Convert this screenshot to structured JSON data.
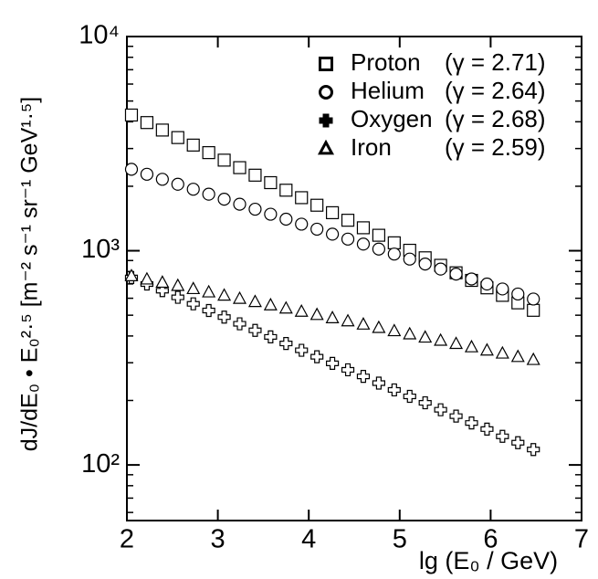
{
  "chart_data": {
    "type": "scatter",
    "log_y": true,
    "xlabel": "lg (E₀ / GeV)",
    "ylabel": "dJ/dE₀ • E₀²·⁵ [m⁻² s⁻¹ sr⁻¹ GeV¹·⁵]",
    "xlim": [
      2,
      7
    ],
    "ylim": [
      55,
      10000
    ],
    "xticks": [
      2,
      3,
      4,
      5,
      6,
      7
    ],
    "yticks": [
      {
        "value": 100,
        "label": "10²"
      },
      {
        "value": 1000,
        "label": "10³"
      },
      {
        "value": 10000,
        "label": "10⁴"
      }
    ],
    "yminor_ticks": [
      60,
      70,
      80,
      90,
      200,
      300,
      400,
      500,
      600,
      700,
      800,
      900,
      2000,
      3000,
      4000,
      5000,
      6000,
      7000,
      8000,
      9000
    ],
    "legend": "upper right",
    "x": [
      2.05,
      2.22,
      2.39,
      2.56,
      2.73,
      2.9,
      3.07,
      3.24,
      3.41,
      3.58,
      3.75,
      3.92,
      4.09,
      4.26,
      4.43,
      4.6,
      4.77,
      4.94,
      5.11,
      5.28,
      5.45,
      5.62,
      5.79,
      5.96,
      6.13,
      6.3,
      6.47
    ],
    "series": [
      {
        "name": "Proton",
        "gamma_label": "(γ = 2.71)",
        "marker": "square",
        "color": "#000000",
        "values": [
          4300,
          3966,
          3659,
          3375,
          3113,
          2871,
          2648,
          2443,
          2253,
          2079,
          1917,
          1769,
          1631,
          1505,
          1388,
          1280,
          1181,
          1089,
          1005,
          927,
          855,
          789,
          727,
          671,
          619,
          571,
          527
        ]
      },
      {
        "name": "Helium",
        "gamma_label": "(γ = 2.64)",
        "marker": "circle",
        "color": "#000000",
        "values": [
          2400,
          2275,
          2156,
          2043,
          1937,
          1836,
          1740,
          1649,
          1563,
          1481,
          1404,
          1331,
          1261,
          1195,
          1133,
          1074,
          1018,
          965,
          914,
          867,
          821,
          778,
          738,
          699,
          663,
          628,
          595
        ]
      },
      {
        "name": "Oxygen",
        "gamma_label": "(γ = 2.68)",
        "marker": "cross",
        "color": "#000000",
        "values": [
          750,
          699,
          651,
          606,
          565,
          526,
          490,
          456,
          425,
          396,
          369,
          343,
          320,
          298,
          278,
          259,
          241,
          224,
          209,
          195,
          181,
          169,
          157,
          147,
          136,
          127,
          118
        ]
      },
      {
        "name": "Iron",
        "gamma_label": "(γ = 2.59)",
        "marker": "triangle",
        "color": "#000000",
        "values": [
          760,
          734,
          709,
          685,
          662,
          639,
          617,
          596,
          576,
          556,
          537,
          519,
          501,
          484,
          468,
          452,
          436,
          421,
          407,
          393,
          380,
          367,
          354,
          342,
          331,
          319,
          309
        ]
      }
    ]
  }
}
